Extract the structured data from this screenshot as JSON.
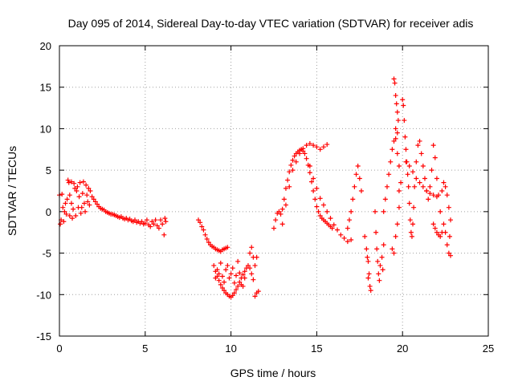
{
  "chart_data": {
    "type": "scatter",
    "title": "Day 095 of 2014, Sidereal Day-to-day VTEC variation (SDTVAR) for receiver adis",
    "xlabel": "GPS time / hours",
    "ylabel": "SDTVAR / TECUs",
    "xlim": [
      0,
      25
    ],
    "ylim": [
      -15,
      20
    ],
    "xticks": [
      "0",
      "5",
      "10",
      "15",
      "20",
      "25"
    ],
    "yticks": [
      "-15",
      "-10",
      "-5",
      "0",
      "5",
      "10",
      "15",
      "20"
    ],
    "grid": true,
    "marker": "+",
    "series_color": "#ff0000",
    "series": [
      {
        "name": "SDTVAR",
        "points": [
          [
            0.0,
            2.0
          ],
          [
            0.05,
            -1.5
          ],
          [
            0.1,
            -1.0
          ],
          [
            0.15,
            2.1
          ],
          [
            0.2,
            0.5
          ],
          [
            0.25,
            -1.2
          ],
          [
            0.3,
            0.0
          ],
          [
            0.35,
            1.0
          ],
          [
            0.4,
            -0.3
          ],
          [
            0.45,
            1.5
          ],
          [
            0.5,
            3.8
          ],
          [
            0.55,
            3.5
          ],
          [
            0.6,
            2.0
          ],
          [
            0.6,
            -0.5
          ],
          [
            0.7,
            1.0
          ],
          [
            0.7,
            3.6
          ],
          [
            0.75,
            -0.8
          ],
          [
            0.8,
            0.3
          ],
          [
            0.85,
            3.4
          ],
          [
            0.9,
            2.8
          ],
          [
            0.95,
            -0.5
          ],
          [
            1.0,
            2.5
          ],
          [
            1.05,
            3.0
          ],
          [
            1.1,
            0.5
          ],
          [
            1.15,
            1.8
          ],
          [
            1.2,
            3.5
          ],
          [
            1.25,
            -0.2
          ],
          [
            1.3,
            0.5
          ],
          [
            1.35,
            2.2
          ],
          [
            1.4,
            3.6
          ],
          [
            1.45,
            1.0
          ],
          [
            1.5,
            0.0
          ],
          [
            1.55,
            3.2
          ],
          [
            1.6,
            2.0
          ],
          [
            1.65,
            1.2
          ],
          [
            1.7,
            2.8
          ],
          [
            1.75,
            0.8
          ],
          [
            1.8,
            2.5
          ],
          [
            1.9,
            1.8
          ],
          [
            2.0,
            1.5
          ],
          [
            2.1,
            1.2
          ],
          [
            2.2,
            0.9
          ],
          [
            2.3,
            0.6
          ],
          [
            2.4,
            0.4
          ],
          [
            2.5,
            0.3
          ],
          [
            2.6,
            0.2
          ],
          [
            2.7,
            0.0
          ],
          [
            2.8,
            -0.1
          ],
          [
            2.9,
            -0.2
          ],
          [
            3.0,
            -0.3
          ],
          [
            3.1,
            -0.3
          ],
          [
            3.2,
            -0.4
          ],
          [
            3.3,
            -0.5
          ],
          [
            3.4,
            -0.6
          ],
          [
            3.5,
            -0.7
          ],
          [
            3.6,
            -0.6
          ],
          [
            3.7,
            -0.8
          ],
          [
            3.8,
            -0.9
          ],
          [
            3.9,
            -0.8
          ],
          [
            4.0,
            -1.0
          ],
          [
            4.1,
            -0.9
          ],
          [
            4.2,
            -1.1
          ],
          [
            4.3,
            -1.2
          ],
          [
            4.4,
            -1.0
          ],
          [
            4.5,
            -1.3
          ],
          [
            4.6,
            -1.2
          ],
          [
            4.7,
            -1.4
          ],
          [
            4.8,
            -1.2
          ],
          [
            4.9,
            -1.5
          ],
          [
            5.0,
            -1.4
          ],
          [
            5.1,
            -1.0
          ],
          [
            5.2,
            -1.6
          ],
          [
            5.3,
            -1.8
          ],
          [
            5.4,
            -1.2
          ],
          [
            5.5,
            -1.5
          ],
          [
            5.6,
            -1.0
          ],
          [
            5.7,
            -1.7
          ],
          [
            5.8,
            -2.0
          ],
          [
            5.9,
            -1.0
          ],
          [
            6.0,
            -1.5
          ],
          [
            6.1,
            -2.8
          ],
          [
            6.15,
            -0.8
          ],
          [
            6.2,
            -1.2
          ],
          [
            8.1,
            -1.0
          ],
          [
            8.2,
            -1.3
          ],
          [
            8.3,
            -1.8
          ],
          [
            8.4,
            -2.2
          ],
          [
            8.5,
            -2.8
          ],
          [
            8.6,
            -3.3
          ],
          [
            8.7,
            -3.7
          ],
          [
            8.8,
            -4.0
          ],
          [
            8.9,
            -4.2
          ],
          [
            9.0,
            -4.3
          ],
          [
            9.1,
            -4.5
          ],
          [
            9.2,
            -4.6
          ],
          [
            9.3,
            -4.7
          ],
          [
            9.4,
            -4.8
          ],
          [
            9.5,
            -4.6
          ],
          [
            9.6,
            -4.5
          ],
          [
            9.7,
            -4.4
          ],
          [
            9.8,
            -4.3
          ],
          [
            9.0,
            -6.5
          ],
          [
            9.1,
            -7.2
          ],
          [
            9.2,
            -7.8
          ],
          [
            9.3,
            -8.3
          ],
          [
            9.4,
            -8.8
          ],
          [
            9.5,
            -9.2
          ],
          [
            9.6,
            -9.5
          ],
          [
            9.7,
            -9.8
          ],
          [
            9.8,
            -10.0
          ],
          [
            9.9,
            -10.2
          ],
          [
            10.0,
            -10.3
          ],
          [
            10.1,
            -10.1
          ],
          [
            10.2,
            -9.8
          ],
          [
            10.3,
            -9.4
          ],
          [
            10.4,
            -9.0
          ],
          [
            10.5,
            -8.5
          ],
          [
            10.6,
            -8.0
          ],
          [
            10.7,
            -7.6
          ],
          [
            10.8,
            -7.2
          ],
          [
            10.9,
            -6.8
          ],
          [
            11.0,
            -6.5
          ],
          [
            11.1,
            -6.8
          ],
          [
            11.2,
            -7.5
          ],
          [
            11.3,
            -8.2
          ],
          [
            9.1,
            -8.0
          ],
          [
            9.2,
            -7.0
          ],
          [
            9.3,
            -7.5
          ],
          [
            9.4,
            -6.2
          ],
          [
            9.5,
            -7.8
          ],
          [
            9.6,
            -8.5
          ],
          [
            9.7,
            -7.0
          ],
          [
            9.8,
            -6.5
          ],
          [
            9.9,
            -8.0
          ],
          [
            10.0,
            -7.5
          ],
          [
            10.1,
            -6.8
          ],
          [
            10.2,
            -8.6
          ],
          [
            10.3,
            -7.7
          ],
          [
            10.4,
            -6.0
          ],
          [
            10.5,
            -7.4
          ],
          [
            10.6,
            -8.8
          ],
          [
            10.7,
            -9.0
          ],
          [
            10.8,
            -8.0
          ],
          [
            11.1,
            -5.0
          ],
          [
            11.2,
            -4.3
          ],
          [
            11.3,
            -5.5
          ],
          [
            11.4,
            -6.5
          ],
          [
            11.5,
            -5.5
          ],
          [
            11.5,
            -9.8
          ],
          [
            11.6,
            -9.6
          ],
          [
            11.4,
            -10.2
          ],
          [
            12.5,
            -2.0
          ],
          [
            12.6,
            -1.0
          ],
          [
            12.7,
            -0.2
          ],
          [
            12.8,
            0.0
          ],
          [
            12.9,
            -0.3
          ],
          [
            13.0,
            0.3
          ],
          [
            13.1,
            1.5
          ],
          [
            13.2,
            2.8
          ],
          [
            13.3,
            3.8
          ],
          [
            13.4,
            4.8
          ],
          [
            13.5,
            5.6
          ],
          [
            13.6,
            6.2
          ],
          [
            13.7,
            6.7
          ],
          [
            13.8,
            7.0
          ],
          [
            13.9,
            7.2
          ],
          [
            14.0,
            7.4
          ],
          [
            14.1,
            7.5
          ],
          [
            14.2,
            7.3
          ],
          [
            14.3,
            7.0
          ],
          [
            14.4,
            6.4
          ],
          [
            14.5,
            5.6
          ],
          [
            14.6,
            4.7
          ],
          [
            14.7,
            3.6
          ],
          [
            14.8,
            2.5
          ],
          [
            14.9,
            1.5
          ],
          [
            15.0,
            0.6
          ],
          [
            15.1,
            0.0
          ],
          [
            15.2,
            -0.5
          ],
          [
            15.3,
            -0.8
          ],
          [
            15.4,
            -1.0
          ],
          [
            15.5,
            -1.2
          ],
          [
            15.6,
            -1.4
          ],
          [
            15.7,
            -1.6
          ],
          [
            15.8,
            -1.8
          ],
          [
            15.9,
            -2.0
          ],
          [
            13.0,
            -1.5
          ],
          [
            13.2,
            0.8
          ],
          [
            13.4,
            3.0
          ],
          [
            13.6,
            5.0
          ],
          [
            13.8,
            6.0
          ],
          [
            14.0,
            7.0
          ],
          [
            14.2,
            7.6
          ],
          [
            14.4,
            8.0
          ],
          [
            14.6,
            8.2
          ],
          [
            14.8,
            8.0
          ],
          [
            15.0,
            7.8
          ],
          [
            15.2,
            7.5
          ],
          [
            15.4,
            7.8
          ],
          [
            15.6,
            8.1
          ],
          [
            14.6,
            5.5
          ],
          [
            14.8,
            4.0
          ],
          [
            15.0,
            2.8
          ],
          [
            15.2,
            1.6
          ],
          [
            15.4,
            0.8
          ],
          [
            15.6,
            0.0
          ],
          [
            15.8,
            -0.8
          ],
          [
            16.0,
            -1.6
          ],
          [
            16.2,
            -2.2
          ],
          [
            16.4,
            -2.8
          ],
          [
            16.6,
            -3.2
          ],
          [
            16.8,
            -3.6
          ],
          [
            17.0,
            -3.4
          ],
          [
            16.8,
            -2.0
          ],
          [
            16.9,
            -1.0
          ],
          [
            17.0,
            0.0
          ],
          [
            17.1,
            1.5
          ],
          [
            17.2,
            3.0
          ],
          [
            17.3,
            4.5
          ],
          [
            17.4,
            5.5
          ],
          [
            17.5,
            4.0
          ],
          [
            17.6,
            2.5
          ],
          [
            17.8,
            -3.0
          ],
          [
            17.9,
            -4.5
          ],
          [
            18.0,
            -6.0
          ],
          [
            18.05,
            -7.5
          ],
          [
            18.1,
            -9.0
          ],
          [
            18.15,
            -9.5
          ],
          [
            17.95,
            -5.5
          ],
          [
            18.0,
            -8.0
          ],
          [
            18.4,
            0.0
          ],
          [
            18.45,
            -2.5
          ],
          [
            18.5,
            -4.5
          ],
          [
            18.55,
            -6.0
          ],
          [
            18.6,
            -7.5
          ],
          [
            18.65,
            -8.3
          ],
          [
            18.7,
            -6.5
          ],
          [
            18.8,
            -5.5
          ],
          [
            18.9,
            -4.0
          ],
          [
            18.85,
            -7.0
          ],
          [
            18.9,
            0.0
          ],
          [
            19.0,
            1.5
          ],
          [
            19.1,
            3.0
          ],
          [
            19.2,
            4.5
          ],
          [
            19.3,
            6.0
          ],
          [
            19.4,
            7.5
          ],
          [
            19.5,
            8.5
          ],
          [
            19.6,
            8.8
          ],
          [
            19.7,
            7.0
          ],
          [
            19.8,
            5.5
          ],
          [
            19.5,
            16.0
          ],
          [
            19.55,
            15.5
          ],
          [
            19.6,
            14.0
          ],
          [
            19.65,
            13.0
          ],
          [
            19.7,
            12.0
          ],
          [
            19.75,
            11.0
          ],
          [
            19.6,
            10.0
          ],
          [
            19.7,
            9.5
          ],
          [
            19.4,
            -4.5
          ],
          [
            19.5,
            -5.0
          ],
          [
            19.6,
            -3.0
          ],
          [
            19.7,
            -1.5
          ],
          [
            19.8,
            0.5
          ],
          [
            19.8,
            2.5
          ],
          [
            19.9,
            3.5
          ],
          [
            20.0,
            13.5
          ],
          [
            20.05,
            12.8
          ],
          [
            20.1,
            11.0
          ],
          [
            20.15,
            9.0
          ],
          [
            20.2,
            7.5
          ],
          [
            20.25,
            6.0
          ],
          [
            20.3,
            4.5
          ],
          [
            20.35,
            3.0
          ],
          [
            20.4,
            1.0
          ],
          [
            20.45,
            -1.0
          ],
          [
            20.5,
            -2.5
          ],
          [
            20.55,
            -3.0
          ],
          [
            20.6,
            -1.5
          ],
          [
            20.65,
            0.5
          ],
          [
            20.7,
            3.0
          ],
          [
            20.8,
            6.0
          ],
          [
            20.9,
            8.0
          ],
          [
            21.0,
            8.5
          ],
          [
            21.1,
            7.0
          ],
          [
            21.2,
            5.5
          ],
          [
            21.3,
            4.0
          ],
          [
            21.4,
            2.5
          ],
          [
            21.5,
            1.5
          ],
          [
            21.6,
            3.0
          ],
          [
            21.7,
            5.0
          ],
          [
            21.8,
            8.0
          ],
          [
            21.9,
            6.5
          ],
          [
            22.0,
            4.0
          ],
          [
            22.1,
            2.0
          ],
          [
            22.2,
            0.0
          ],
          [
            21.8,
            -1.5
          ],
          [
            21.9,
            -2.0
          ],
          [
            22.0,
            -2.5
          ],
          [
            22.1,
            -2.8
          ],
          [
            22.2,
            -3.0
          ],
          [
            22.3,
            -2.5
          ],
          [
            22.4,
            -1.5
          ],
          [
            22.5,
            -2.5
          ],
          [
            22.6,
            -4.0
          ],
          [
            22.7,
            -5.0
          ],
          [
            22.8,
            -5.3
          ],
          [
            22.3,
            2.5
          ],
          [
            22.4,
            3.5
          ],
          [
            22.5,
            3.0
          ],
          [
            22.6,
            2.0
          ],
          [
            22.7,
            0.5
          ],
          [
            22.8,
            -1.0
          ],
          [
            22.75,
            -3.0
          ],
          [
            20.2,
            6.0
          ],
          [
            20.4,
            5.5
          ],
          [
            20.6,
            4.8
          ],
          [
            20.8,
            4.0
          ],
          [
            21.0,
            3.5
          ],
          [
            21.2,
            3.0
          ],
          [
            21.4,
            2.5
          ],
          [
            21.6,
            2.2
          ],
          [
            21.8,
            2.0
          ],
          [
            22.0,
            1.8
          ]
        ]
      }
    ]
  }
}
